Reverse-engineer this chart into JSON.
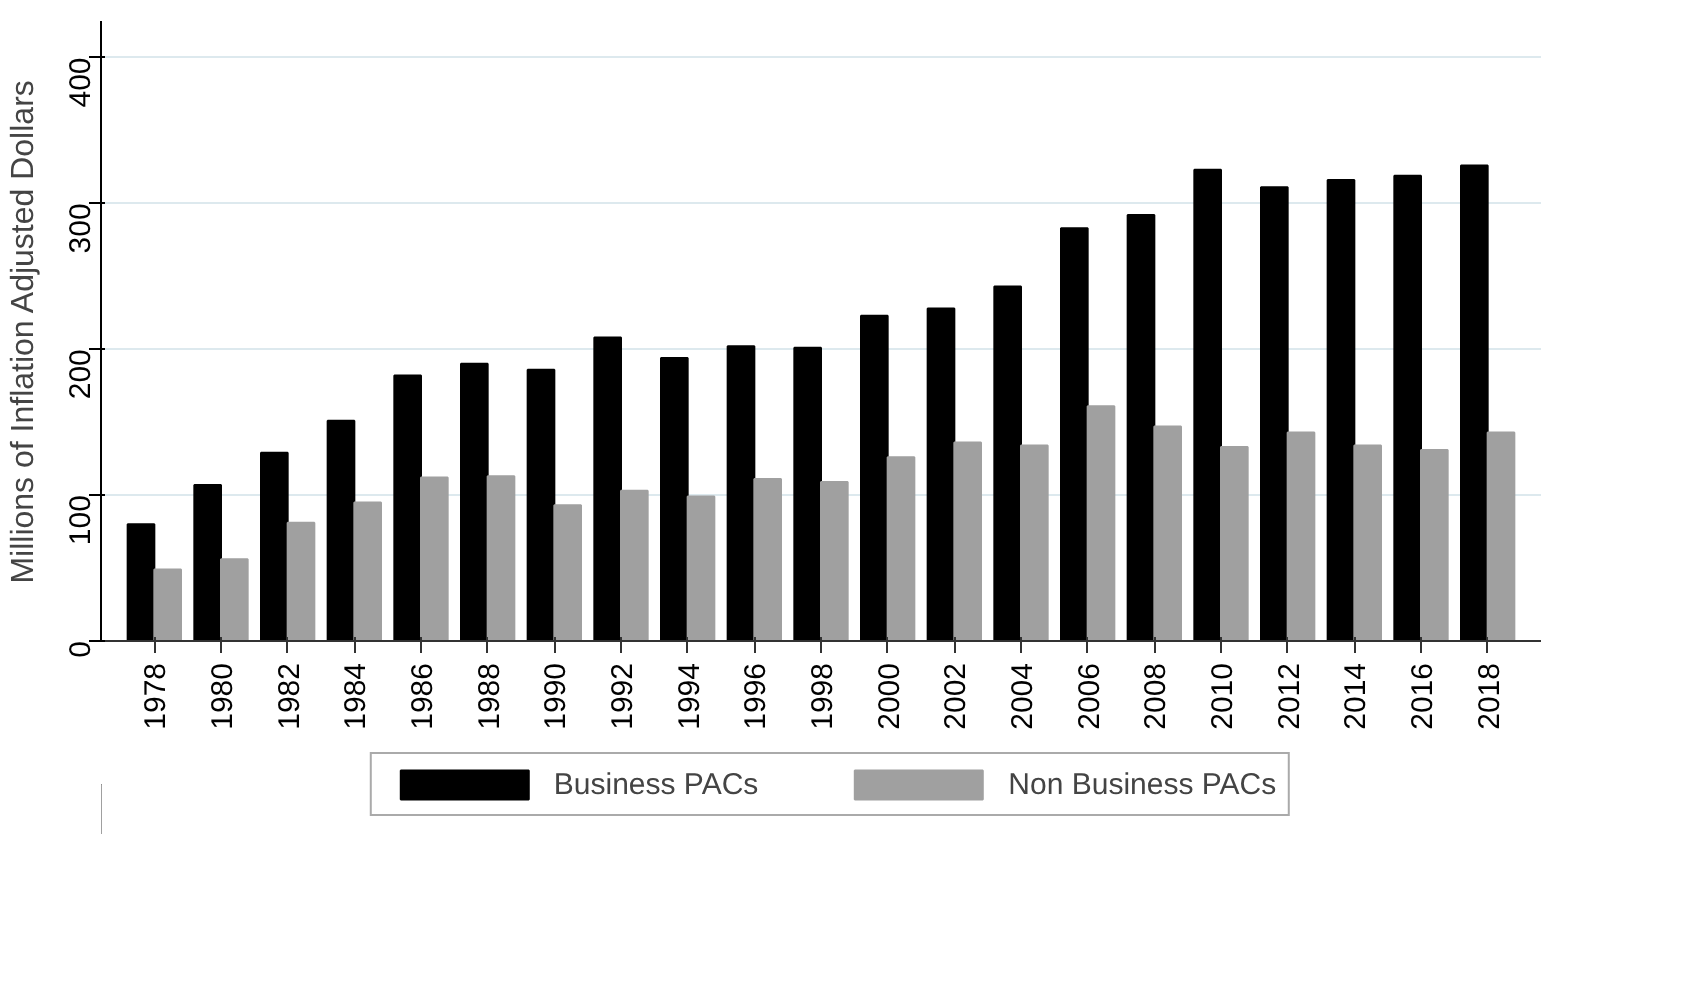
{
  "chart_data": {
    "type": "bar",
    "ylabel": "Millions of Inflation Adjusted Dollars",
    "categories": [
      "1978",
      "1980",
      "1982",
      "1984",
      "1986",
      "1988",
      "1990",
      "1992",
      "1994",
      "1996",
      "1998",
      "2000",
      "2002",
      "2004",
      "2006",
      "2008",
      "2010",
      "2012",
      "2014",
      "2016",
      "2018"
    ],
    "series": [
      {
        "name": "Business PACs",
        "color": "#000000",
        "values": [
          80,
          107,
          129,
          151,
          182,
          190,
          186,
          208,
          194,
          202,
          201,
          223,
          228,
          243,
          283,
          292,
          323,
          311,
          316,
          319,
          326
        ]
      },
      {
        "name": "Non Business PACs",
        "color": "#a0a0a0",
        "values": [
          49,
          56,
          81,
          95,
          112,
          113,
          93,
          103,
          99,
          111,
          109,
          126,
          136,
          134,
          161,
          147,
          133,
          143,
          134,
          131,
          143
        ]
      }
    ],
    "ylim": [
      0,
      425
    ],
    "yticks": [
      0,
      100,
      200,
      300,
      400
    ],
    "grid": "y",
    "legend": "bottom"
  }
}
